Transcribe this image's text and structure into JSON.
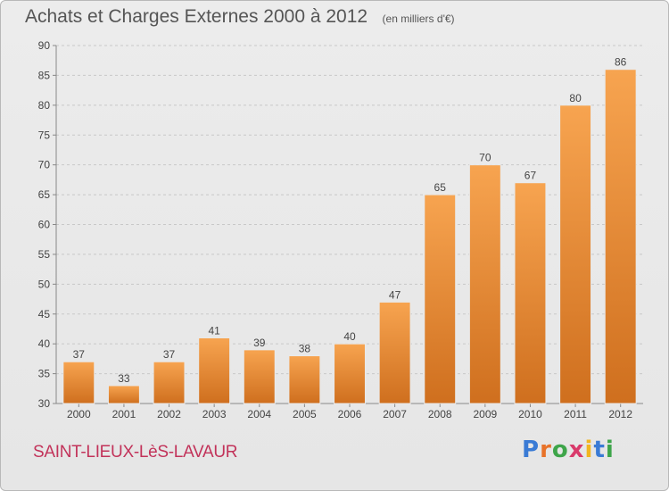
{
  "header": {
    "title": "Achats et Charges Externes 2000 à 2012",
    "unit": "(en milliers d'€)"
  },
  "footer": {
    "commune": "SAINT-LIEUX-LèS-LAVAUR",
    "logo": {
      "letters": [
        "P",
        "r",
        "o",
        "x",
        "i",
        "t",
        "i"
      ],
      "colors": [
        "#3a7bd5",
        "#e8732a",
        "#3ea54a",
        "#d93a6b",
        "#f2b51f",
        "#3a7bd5",
        "#3ea54a"
      ]
    }
  },
  "colors": {
    "bar_light": "#f7a450",
    "bar_dark": "#cf6f1e",
    "grid": "#c8c8c8",
    "axis": "#888888"
  },
  "chart_data": {
    "type": "bar",
    "categories": [
      "2000",
      "2001",
      "2002",
      "2003",
      "2004",
      "2005",
      "2006",
      "2007",
      "2008",
      "2009",
      "2010",
      "2011",
      "2012"
    ],
    "values": [
      37,
      33,
      37,
      41,
      39,
      38,
      40,
      47,
      65,
      70,
      67,
      80,
      86
    ],
    "title": "Achats et Charges Externes 2000 à 2012",
    "ylim": [
      30,
      90
    ],
    "yticks": [
      30,
      35,
      40,
      45,
      50,
      55,
      60,
      65,
      70,
      75,
      80,
      85,
      90
    ],
    "grid": true,
    "data_labels": true
  }
}
